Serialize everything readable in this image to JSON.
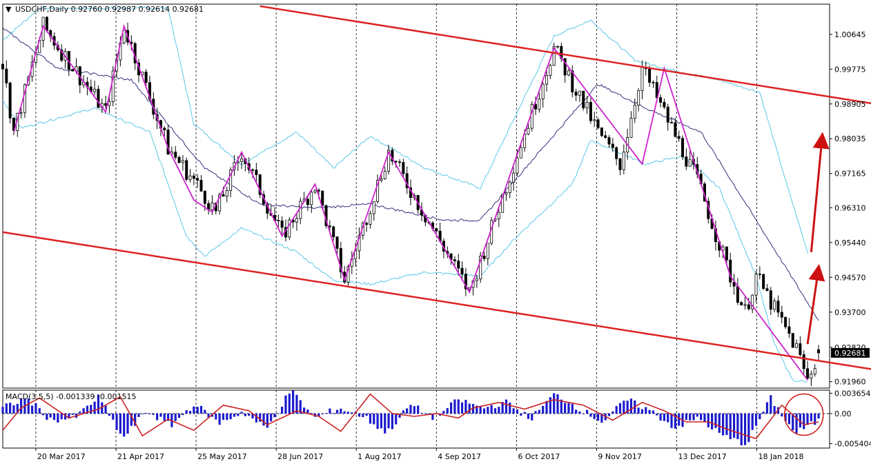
{
  "window": {
    "title_arrow": "▼",
    "title": "USDCHF,Daily  0.92760 0.92987 0.92614 0.92681"
  },
  "chart_data": [
    {
      "type": "candlestick",
      "symbol": "USDCHF",
      "timeframe": "Daily",
      "ohlc_header": {
        "open": 0.9276,
        "high": 0.92987,
        "low": 0.92614,
        "close": 0.92681
      },
      "current_price": "0.92681",
      "ylim": [
        0.918,
        1.014
      ],
      "y_ticks": [
        "1.00645",
        "0.99775",
        "0.98905",
        "0.98035",
        "0.97165",
        "0.96310",
        "0.95440",
        "0.94570",
        "0.93700",
        "0.92820",
        "0.91960"
      ],
      "x_ticks": [
        "20 Mar 2017",
        "21 Apr 2017",
        "25 May 2017",
        "28 Jun 2017",
        "1 Aug 2017",
        "4 Sep 2017",
        "6 Oct 2017",
        "9 Nov 2017",
        "13 Dec 2017",
        "18 Jan 2018"
      ],
      "grid": true,
      "colors": {
        "candle": "#000000",
        "bollinger_bands": "#5ac8e6",
        "bollinger_middle": "#1a1a6e",
        "zigzag": "#cc22cc",
        "channel": "#dd2222",
        "arrows": "#cc1111",
        "price_tag_bg": "#000000"
      },
      "price_path": [
        {
          "x": 0,
          "y": 0.999
        },
        {
          "x": 3,
          "y": 0.982
        },
        {
          "x": 11,
          "y": 1.0085
        },
        {
          "x": 28,
          "y": 0.987
        },
        {
          "x": 33,
          "y": 1.0085
        },
        {
          "x": 45,
          "y": 0.978
        },
        {
          "x": 52,
          "y": 0.97
        },
        {
          "x": 58,
          "y": 0.962
        },
        {
          "x": 65,
          "y": 0.977
        },
        {
          "x": 76,
          "y": 0.956
        },
        {
          "x": 85,
          "y": 0.969
        },
        {
          "x": 93,
          "y": 0.945
        },
        {
          "x": 105,
          "y": 0.977
        },
        {
          "x": 127,
          "y": 0.942
        },
        {
          "x": 150,
          "y": 1.003
        },
        {
          "x": 162,
          "y": 0.982
        },
        {
          "x": 168,
          "y": 0.974
        },
        {
          "x": 174,
          "y": 0.998
        },
        {
          "x": 189,
          "y": 0.97
        },
        {
          "x": 198,
          "y": 0.946
        },
        {
          "x": 202,
          "y": 0.937
        },
        {
          "x": 205,
          "y": 0.946
        },
        {
          "x": 211,
          "y": 0.936
        },
        {
          "x": 216,
          "y": 0.928
        },
        {
          "x": 219,
          "y": 0.92
        },
        {
          "x": 222,
          "y": 0.9268
        }
      ],
      "bollinger_upper": [
        {
          "x": 0,
          "y": 1.005
        },
        {
          "x": 10,
          "y": 1.013
        },
        {
          "x": 45,
          "y": 1.013
        },
        {
          "x": 52,
          "y": 0.984
        },
        {
          "x": 65,
          "y": 0.974
        },
        {
          "x": 80,
          "y": 0.982
        },
        {
          "x": 90,
          "y": 0.973
        },
        {
          "x": 100,
          "y": 0.981
        },
        {
          "x": 115,
          "y": 0.973
        },
        {
          "x": 130,
          "y": 0.968
        },
        {
          "x": 150,
          "y": 1.006
        },
        {
          "x": 160,
          "y": 1.01
        },
        {
          "x": 172,
          "y": 1.0
        },
        {
          "x": 180,
          "y": 0.998
        },
        {
          "x": 195,
          "y": 0.995
        },
        {
          "x": 206,
          "y": 0.992
        },
        {
          "x": 213,
          "y": 0.97
        },
        {
          "x": 219,
          "y": 0.952
        }
      ],
      "bollinger_middle": [
        {
          "x": 0,
          "y": 1.008
        },
        {
          "x": 15,
          "y": 0.998
        },
        {
          "x": 35,
          "y": 0.995
        },
        {
          "x": 55,
          "y": 0.973
        },
        {
          "x": 70,
          "y": 0.964
        },
        {
          "x": 85,
          "y": 0.963
        },
        {
          "x": 100,
          "y": 0.964
        },
        {
          "x": 120,
          "y": 0.96
        },
        {
          "x": 130,
          "y": 0.96
        },
        {
          "x": 145,
          "y": 0.976
        },
        {
          "x": 162,
          "y": 0.994
        },
        {
          "x": 175,
          "y": 0.988
        },
        {
          "x": 190,
          "y": 0.982
        },
        {
          "x": 205,
          "y": 0.96
        },
        {
          "x": 222,
          "y": 0.935
        }
      ],
      "bollinger_lower": [
        {
          "x": 0,
          "y": 0.99
        },
        {
          "x": 5,
          "y": 0.983
        },
        {
          "x": 25,
          "y": 0.988
        },
        {
          "x": 40,
          "y": 0.982
        },
        {
          "x": 50,
          "y": 0.956
        },
        {
          "x": 55,
          "y": 0.951
        },
        {
          "x": 65,
          "y": 0.958
        },
        {
          "x": 80,
          "y": 0.952
        },
        {
          "x": 90,
          "y": 0.945
        },
        {
          "x": 100,
          "y": 0.944
        },
        {
          "x": 115,
          "y": 0.947
        },
        {
          "x": 130,
          "y": 0.946
        },
        {
          "x": 140,
          "y": 0.956
        },
        {
          "x": 155,
          "y": 0.969
        },
        {
          "x": 160,
          "y": 0.98
        },
        {
          "x": 175,
          "y": 0.974
        },
        {
          "x": 185,
          "y": 0.976
        },
        {
          "x": 195,
          "y": 0.968
        },
        {
          "x": 205,
          "y": 0.946
        },
        {
          "x": 210,
          "y": 0.929
        },
        {
          "x": 215,
          "y": 0.92
        },
        {
          "x": 219,
          "y": 0.9195
        }
      ],
      "zigzag": [
        {
          "x": 3,
          "y": 0.982
        },
        {
          "x": 11,
          "y": 1.0085
        },
        {
          "x": 28,
          "y": 0.987
        },
        {
          "x": 33,
          "y": 1.0085
        },
        {
          "x": 45,
          "y": 0.978
        },
        {
          "x": 52,
          "y": 0.965
        },
        {
          "x": 57,
          "y": 0.962
        },
        {
          "x": 65,
          "y": 0.977
        },
        {
          "x": 76,
          "y": 0.956
        },
        {
          "x": 85,
          "y": 0.969
        },
        {
          "x": 93,
          "y": 0.945
        },
        {
          "x": 105,
          "y": 0.977
        },
        {
          "x": 127,
          "y": 0.942
        },
        {
          "x": 150,
          "y": 1.003
        },
        {
          "x": 174,
          "y": 0.974
        },
        {
          "x": 180,
          "y": 0.998
        },
        {
          "x": 198,
          "y": 0.946
        },
        {
          "x": 219,
          "y": 0.92
        }
      ],
      "channel_upper": [
        {
          "x": 70,
          "y": 1.0135
        },
        {
          "x": 265,
          "y": 0.985
        }
      ],
      "channel_lower": [
        {
          "x": 0,
          "y": 0.957
        },
        {
          "x": 265,
          "y": 0.9186
        }
      ],
      "arrows": [
        {
          "from": {
            "x": 219,
            "y": 0.929
          },
          "to": {
            "x": 222,
            "y": 0.948
          }
        },
        {
          "from": {
            "x": 220,
            "y": 0.952
          },
          "to": {
            "x": 223,
            "y": 0.981
          }
        }
      ]
    },
    {
      "type": "bar",
      "title": "MACD(3,5,5) -0.001339 -0.001515",
      "ylim": [
        -0.0062,
        0.0042
      ],
      "y_ticks": [
        "0.003654",
        "0.00",
        "-0.005404"
      ],
      "colors": {
        "histogram": "#1a1acc",
        "signal": "#cc2222",
        "zero_line": "#000000"
      },
      "values": [
        0.001,
        0.0028,
        -0.0012,
        -0.0008,
        0.003,
        -0.0045,
        0.0005,
        -0.0022,
        0.0018,
        -0.0018,
        0.0003,
        -0.0028,
        0.0042,
        -0.0008,
        0.001,
        -0.0004,
        -0.0035,
        0.0016,
        -0.0008,
        0.0025,
        0.001,
        0.002,
        -0.001,
        0.0035,
        0.001,
        -0.0015,
        0.0025,
        0.0005,
        -0.0025,
        -0.0008,
        -0.004,
        -0.0055,
        0.0028,
        -0.0035,
        -0.0013
      ],
      "signal": [
        {
          "x": 0,
          "y": -0.003
        },
        {
          "x": 5,
          "y": 0.001
        },
        {
          "x": 10,
          "y": 0.0028
        },
        {
          "x": 18,
          "y": -0.0008
        },
        {
          "x": 26,
          "y": 0.0008
        },
        {
          "x": 32,
          "y": 0.003
        },
        {
          "x": 38,
          "y": -0.004
        },
        {
          "x": 45,
          "y": -0.001
        },
        {
          "x": 52,
          "y": -0.003
        },
        {
          "x": 60,
          "y": 0.0015
        },
        {
          "x": 67,
          "y": 0.0005
        },
        {
          "x": 72,
          "y": -0.002
        },
        {
          "x": 80,
          "y": 0.0005
        },
        {
          "x": 86,
          "y": -0.0005
        },
        {
          "x": 92,
          "y": -0.0032
        },
        {
          "x": 100,
          "y": 0.0035
        },
        {
          "x": 106,
          "y": 0.0
        },
        {
          "x": 112,
          "y": -0.0005
        },
        {
          "x": 118,
          "y": 0.0
        },
        {
          "x": 124,
          "y": -0.0008
        },
        {
          "x": 128,
          "y": 0.001
        },
        {
          "x": 135,
          "y": 0.002
        },
        {
          "x": 142,
          "y": 0.0008
        },
        {
          "x": 150,
          "y": 0.0025
        },
        {
          "x": 158,
          "y": 0.0015
        },
        {
          "x": 166,
          "y": -0.0012
        },
        {
          "x": 174,
          "y": 0.002
        },
        {
          "x": 180,
          "y": 0.0005
        },
        {
          "x": 186,
          "y": -0.0015
        },
        {
          "x": 192,
          "y": -0.0015
        },
        {
          "x": 198,
          "y": -0.003
        },
        {
          "x": 205,
          "y": -0.0045
        },
        {
          "x": 212,
          "y": 0.0015
        },
        {
          "x": 218,
          "y": -0.002
        },
        {
          "x": 222,
          "y": -0.0015
        }
      ]
    }
  ]
}
